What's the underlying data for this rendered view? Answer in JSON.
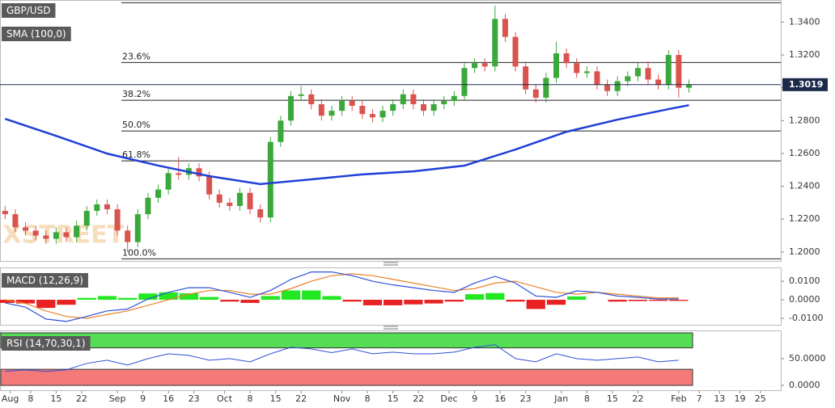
{
  "chart_data": [
    {
      "type": "candlestick",
      "title": "GBP/USD",
      "watermark": "FXSTREET",
      "xlim": [
        -1,
        152
      ],
      "xticks": [
        {
          "value": 1,
          "label": "Aug"
        },
        {
          "value": 5,
          "label": "8"
        },
        {
          "value": 10,
          "label": "15"
        },
        {
          "value": 15,
          "label": "22"
        },
        {
          "value": 22,
          "label": "Sep"
        },
        {
          "value": 27,
          "label": "9"
        },
        {
          "value": 32,
          "label": "16"
        },
        {
          "value": 37,
          "label": "23"
        },
        {
          "value": 43,
          "label": "Oct"
        },
        {
          "value": 48,
          "label": "8"
        },
        {
          "value": 53,
          "label": "15"
        },
        {
          "value": 58,
          "label": "22"
        },
        {
          "value": 66,
          "label": "Nov"
        },
        {
          "value": 71,
          "label": "8"
        },
        {
          "value": 76,
          "label": "15"
        },
        {
          "value": 81,
          "label": "22"
        },
        {
          "value": 87,
          "label": "Dec"
        },
        {
          "value": 92,
          "label": "9"
        },
        {
          "value": 97,
          "label": "16"
        },
        {
          "value": 102,
          "label": "23"
        },
        {
          "value": 109,
          "label": "Jan"
        },
        {
          "value": 114,
          "label": "8"
        },
        {
          "value": 119,
          "label": "15"
        },
        {
          "value": 124,
          "label": "22"
        },
        {
          "value": 132,
          "label": "Feb"
        },
        {
          "value": 136,
          "label": "7"
        },
        {
          "value": 140,
          "label": "13"
        },
        {
          "value": 144,
          "label": "19"
        },
        {
          "value": 148,
          "label": "25"
        }
      ],
      "ylim": [
        1.1945,
        1.3525
      ],
      "yticks": [
        {
          "value": 1.2,
          "label": "1.2000"
        },
        {
          "value": 1.22,
          "label": "1.2200"
        },
        {
          "value": 1.24,
          "label": "1.2400"
        },
        {
          "value": 1.26,
          "label": "1.2600"
        },
        {
          "value": 1.28,
          "label": "1.2800"
        },
        {
          "value": 1.3,
          "label": "1.3000"
        },
        {
          "value": 1.32,
          "label": "1.3200"
        },
        {
          "value": 1.34,
          "label": "1.3400"
        }
      ],
      "up_color": "#3aa83a",
      "down_color": "#d9534f",
      "x": [
        0,
        2,
        4,
        6,
        8,
        10,
        12,
        14,
        16,
        18,
        20,
        22,
        24,
        26,
        28,
        30,
        32,
        34,
        36,
        38,
        40,
        42,
        44,
        46,
        48,
        50,
        52,
        54,
        56,
        58,
        60,
        62,
        64,
        66,
        68,
        70,
        72,
        74,
        76,
        78,
        80,
        82,
        84,
        86,
        88,
        90,
        92,
        94,
        96,
        98,
        100,
        102,
        104,
        106,
        108,
        110,
        112,
        114,
        116,
        118,
        120,
        122,
        124,
        126,
        128,
        130,
        132,
        134
      ],
      "open": [
        1.225,
        1.223,
        1.215,
        1.213,
        1.21,
        1.208,
        1.212,
        1.209,
        1.216,
        1.225,
        1.229,
        1.226,
        1.213,
        1.206,
        1.223,
        1.233,
        1.238,
        1.248,
        1.247,
        1.251,
        1.246,
        1.235,
        1.23,
        1.228,
        1.236,
        1.226,
        1.221,
        1.267,
        1.28,
        1.295,
        1.296,
        1.29,
        1.283,
        1.286,
        1.292,
        1.289,
        1.284,
        1.282,
        1.286,
        1.29,
        1.296,
        1.29,
        1.286,
        1.29,
        1.292,
        1.295,
        1.312,
        1.315,
        1.313,
        1.342,
        1.331,
        1.313,
        1.299,
        1.294,
        1.306,
        1.321,
        1.315,
        1.309,
        1.31,
        1.302,
        1.298,
        1.304,
        1.307,
        1.312,
        1.305,
        1.302,
        1.32,
        1.3
      ],
      "high": [
        1.228,
        1.226,
        1.218,
        1.216,
        1.213,
        1.215,
        1.215,
        1.219,
        1.228,
        1.232,
        1.232,
        1.229,
        1.216,
        1.226,
        1.236,
        1.241,
        1.251,
        1.258,
        1.254,
        1.254,
        1.249,
        1.238,
        1.233,
        1.239,
        1.239,
        1.229,
        1.27,
        1.283,
        1.298,
        1.301,
        1.299,
        1.293,
        1.289,
        1.295,
        1.295,
        1.292,
        1.287,
        1.289,
        1.293,
        1.299,
        1.299,
        1.293,
        1.293,
        1.295,
        1.298,
        1.315,
        1.318,
        1.318,
        1.35,
        1.345,
        1.334,
        1.316,
        1.302,
        1.309,
        1.328,
        1.324,
        1.318,
        1.313,
        1.313,
        1.305,
        1.307,
        1.31,
        1.315,
        1.316,
        1.308,
        1.323,
        1.323,
        1.305
      ],
      "low": [
        1.22,
        1.212,
        1.21,
        1.207,
        1.205,
        1.205,
        1.206,
        1.206,
        1.213,
        1.222,
        1.223,
        1.21,
        1.2,
        1.203,
        1.22,
        1.23,
        1.235,
        1.244,
        1.244,
        1.243,
        1.232,
        1.227,
        1.225,
        1.225,
        1.223,
        1.218,
        1.218,
        1.264,
        1.277,
        1.292,
        1.287,
        1.28,
        1.28,
        1.283,
        1.286,
        1.281,
        1.279,
        1.279,
        1.283,
        1.287,
        1.287,
        1.283,
        1.283,
        1.287,
        1.289,
        1.292,
        1.309,
        1.31,
        1.31,
        1.328,
        1.31,
        1.296,
        1.291,
        1.291,
        1.303,
        1.312,
        1.306,
        1.306,
        1.299,
        1.295,
        1.295,
        1.301,
        1.304,
        1.302,
        1.299,
        1.299,
        1.294,
        1.297
      ],
      "close": [
        1.223,
        1.215,
        1.213,
        1.21,
        1.208,
        1.212,
        1.209,
        1.216,
        1.225,
        1.229,
        1.226,
        1.213,
        1.206,
        1.223,
        1.233,
        1.238,
        1.248,
        1.247,
        1.251,
        1.246,
        1.235,
        1.23,
        1.228,
        1.236,
        1.226,
        1.221,
        1.267,
        1.28,
        1.295,
        1.296,
        1.29,
        1.283,
        1.286,
        1.292,
        1.289,
        1.284,
        1.282,
        1.286,
        1.29,
        1.296,
        1.29,
        1.286,
        1.29,
        1.292,
        1.295,
        1.312,
        1.315,
        1.313,
        1.342,
        1.331,
        1.313,
        1.299,
        1.294,
        1.306,
        1.321,
        1.315,
        1.309,
        1.31,
        1.302,
        1.298,
        1.304,
        1.307,
        1.312,
        1.305,
        1.302,
        1.32,
        1.3,
        1.302
      ],
      "series": [
        {
          "name": "SMA (100,0)",
          "color": "#1f3fd6",
          "x": [
            0,
            10,
            20,
            30,
            40,
            50,
            60,
            70,
            80,
            90,
            100,
            110,
            120,
            130,
            134
          ],
          "values": [
            1.2811,
            1.2707,
            1.2599,
            1.2526,
            1.2462,
            1.2413,
            1.2442,
            1.2472,
            1.2491,
            1.2526,
            1.2624,
            1.2732,
            1.2806,
            1.287,
            1.2894
          ]
        }
      ],
      "fib_levels": {
        "values": [
          1.3518,
          1.3154,
          1.2924,
          1.2737,
          1.2555,
          1.1958
        ],
        "labels": [
          null,
          "23.6%",
          "38.2%",
          "50.0%",
          "61.8%",
          "100.0%"
        ]
      },
      "last_price": {
        "value": 1.3019,
        "label": "1.3019"
      }
    },
    {
      "type": "macd",
      "title": "MACD (12,26,9)",
      "ylim": [
        -0.0135,
        0.017
      ],
      "yticks": [
        {
          "value": -0.01,
          "label": "-0.0100"
        },
        {
          "value": 0,
          "label": "0.0000"
        },
        {
          "value": 0.01,
          "label": "0.0100"
        }
      ],
      "x": [
        0,
        4,
        8,
        12,
        16,
        20,
        24,
        28,
        32,
        36,
        40,
        44,
        48,
        52,
        56,
        60,
        64,
        68,
        72,
        76,
        80,
        84,
        88,
        92,
        96,
        100,
        104,
        108,
        112,
        116,
        120,
        124,
        128,
        132
      ],
      "macd": {
        "color": "#2f4fd8",
        "values": [
          -0.0017,
          -0.004,
          -0.0104,
          -0.0117,
          -0.009,
          -0.006,
          -0.005,
          0.0004,
          0.004,
          0.0065,
          0.0065,
          0.004,
          0.0013,
          0.005,
          0.011,
          0.015,
          0.015,
          0.013,
          0.01,
          0.008,
          0.0065,
          0.005,
          0.004,
          0.009,
          0.0126,
          0.009,
          0.002,
          0.0013,
          0.0048,
          0.004,
          0.002,
          0.0013,
          0.0004,
          0.0004
        ]
      },
      "signal": {
        "color": "#e8822a",
        "values": [
          0.0,
          -0.002,
          -0.006,
          -0.009,
          -0.01,
          -0.008,
          -0.006,
          -0.003,
          0.0,
          0.003,
          0.005,
          0.005,
          0.003,
          0.003,
          0.006,
          0.01,
          0.013,
          0.014,
          0.013,
          0.011,
          0.009,
          0.007,
          0.005,
          0.006,
          0.009,
          0.01,
          0.007,
          0.004,
          0.003,
          0.004,
          0.003,
          0.002,
          0.001,
          0.001
        ]
      },
      "histogram": {
        "up_color": "#22e822",
        "down_color": "#e82222",
        "values": [
          -0.0017,
          -0.002,
          -0.0044,
          -0.0027,
          0.001,
          0.002,
          0.001,
          0.0034,
          0.004,
          0.0035,
          0.0015,
          -0.001,
          -0.0017,
          0.002,
          0.005,
          0.005,
          0.002,
          -0.001,
          -0.003,
          -0.003,
          -0.0025,
          -0.002,
          -0.001,
          0.003,
          0.0036,
          -0.001,
          -0.005,
          -0.0027,
          0.0018,
          0.0,
          -0.001,
          -0.0007,
          -0.0006,
          -0.0006
        ]
      }
    },
    {
      "type": "rsi",
      "title": "RSI (14,70,30,1)",
      "ylim": [
        -9,
        101
      ],
      "overbought": 70,
      "oversold": 30,
      "overbought_color": "#55dd55",
      "oversold_color": "#f47a7a",
      "color": "#2f4fd8",
      "yticks": [
        {
          "value": 0,
          "label": "0.0000"
        },
        {
          "value": 50,
          "label": "50.0000"
        }
      ],
      "x": [
        0,
        4,
        8,
        12,
        16,
        20,
        24,
        28,
        32,
        36,
        40,
        44,
        48,
        52,
        56,
        60,
        64,
        68,
        72,
        76,
        80,
        84,
        88,
        92,
        96,
        100,
        104,
        108,
        112,
        116,
        120,
        124,
        128,
        132
      ],
      "values": [
        26,
        29,
        26,
        29,
        41,
        47,
        38,
        50,
        59,
        56,
        47,
        50,
        44,
        59,
        71,
        68,
        61,
        68,
        59,
        62,
        59,
        59,
        62,
        71,
        76,
        50,
        44,
        59,
        50,
        47,
        50,
        53,
        44,
        47
      ]
    }
  ]
}
